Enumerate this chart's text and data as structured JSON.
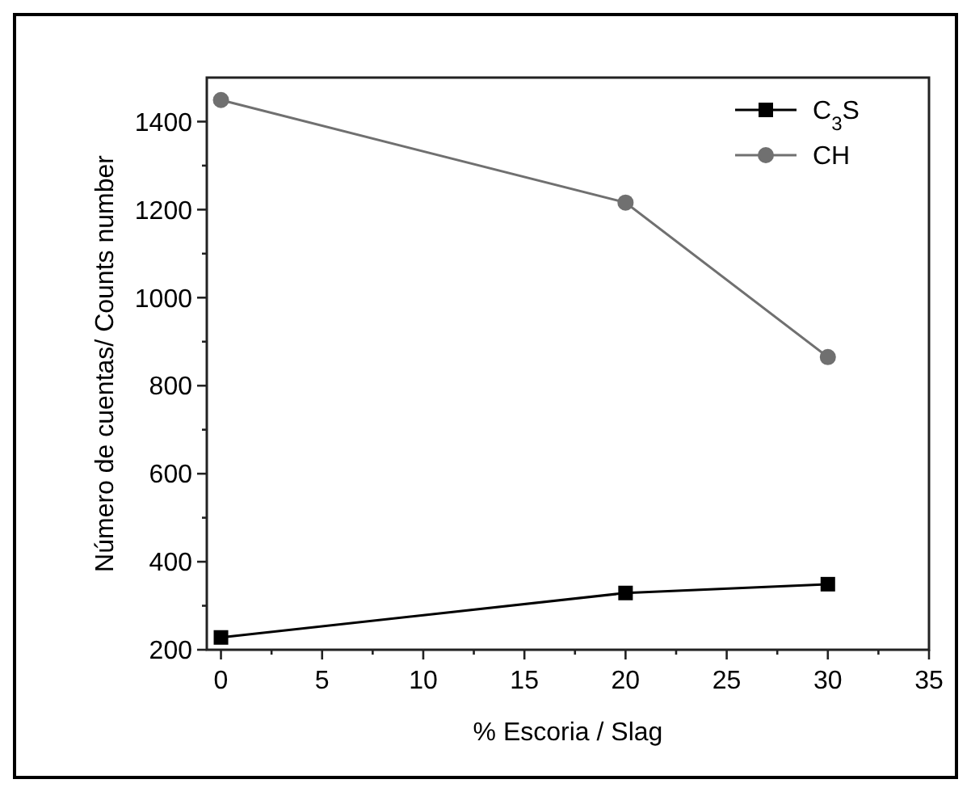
{
  "chart_data": {
    "type": "line",
    "xlabel": "% Escoria / Slag",
    "ylabel": "Número de cuentas/ Counts number",
    "x": [
      0,
      20,
      30
    ],
    "series": [
      {
        "name": "C$_{3}$S",
        "color": "#000000",
        "marker": "square",
        "values": [
          228,
          329,
          349
        ]
      },
      {
        "name": "CH",
        "color": "#707070",
        "marker": "circle",
        "values": [
          1449,
          1216,
          865
        ]
      }
    ],
    "xlim": [
      -0.7,
      35
    ],
    "ylim": [
      200,
      1500
    ],
    "xticks": [
      0,
      {
        "value": 2.5,
        "label": null
      },
      5,
      {
        "value": 7.5,
        "label": null
      },
      10,
      {
        "value": 12.5,
        "label": null
      },
      15,
      {
        "value": 17.5,
        "label": null
      },
      20,
      {
        "value": 22.5,
        "label": null
      },
      25,
      {
        "value": 27.5,
        "label": null
      },
      30,
      {
        "value": 32.5,
        "label": null
      },
      35
    ],
    "yticks": [
      200,
      {
        "value": 300,
        "label": null
      },
      400,
      {
        "value": 500,
        "label": null
      },
      600,
      {
        "value": 700,
        "label": null
      },
      800,
      {
        "value": 900,
        "label": null
      },
      1000,
      {
        "value": 1100,
        "label": null
      },
      1200,
      {
        "value": 1300,
        "label": null
      },
      1400
    ],
    "legend": "top right",
    "grid": false,
    "line_style": "solid"
  }
}
